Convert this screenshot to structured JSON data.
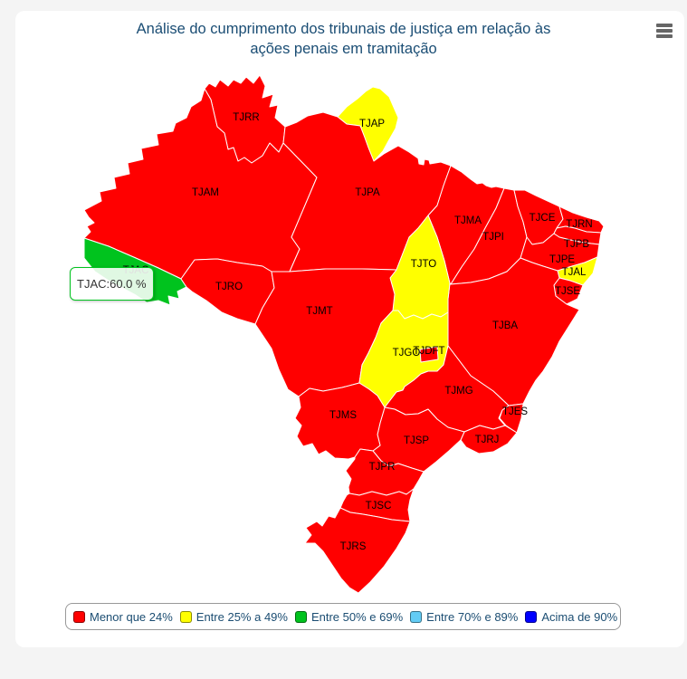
{
  "page": {
    "background": "#f4f4f4",
    "card_background": "#ffffff"
  },
  "chart": {
    "title": "Análise do cumprimento dos tribunais de justiça em relação às ações penais em tramitação",
    "title_color": "#1a4d74",
    "menu_icon": "hamburger-menu",
    "tooltip": {
      "text": "TJAC:60.0 %",
      "border_color": "#00c31e"
    }
  },
  "chart_data": {
    "type": "choropleth_map",
    "title": "Análise do cumprimento dos tribunais de justiça em relação às ações penais em tramitação",
    "unit": "%",
    "legend_position": "bottom",
    "classes": [
      {
        "label": "Menor que 24%",
        "color": "#FF0000"
      },
      {
        "label": "Entre 25% a 49%",
        "color": "#FFFF00"
      },
      {
        "label": "Entre 50% e 69%",
        "color": "#00C31E"
      },
      {
        "label": "Entre 70% e 89%",
        "color": "#63CCF5"
      },
      {
        "label": "Acima de 90%",
        "color": "#0000FF"
      }
    ],
    "regions": [
      {
        "id": "TJRR",
        "class_index": 0
      },
      {
        "id": "TJAP",
        "class_index": 1
      },
      {
        "id": "TJAM",
        "class_index": 0
      },
      {
        "id": "TJPA",
        "class_index": 0
      },
      {
        "id": "TJMA",
        "class_index": 0
      },
      {
        "id": "TJPI",
        "class_index": 0
      },
      {
        "id": "TJCE",
        "class_index": 0
      },
      {
        "id": "TJRN",
        "class_index": 0
      },
      {
        "id": "TJPB",
        "class_index": 0
      },
      {
        "id": "TJPE",
        "class_index": 0
      },
      {
        "id": "TJAL",
        "class_index": 1
      },
      {
        "id": "TJSE",
        "class_index": 0
      },
      {
        "id": "TJBA",
        "class_index": 0
      },
      {
        "id": "TJTO",
        "class_index": 1
      },
      {
        "id": "TJAC",
        "class_index": 2,
        "value": 60.0
      },
      {
        "id": "TJRO",
        "class_index": 0
      },
      {
        "id": "TJMT",
        "class_index": 0
      },
      {
        "id": "TJGO",
        "class_index": 1
      },
      {
        "id": "TJDFT",
        "class_index": 0
      },
      {
        "id": "TJMG",
        "class_index": 0
      },
      {
        "id": "TJES",
        "class_index": 0
      },
      {
        "id": "TJRJ",
        "class_index": 0
      },
      {
        "id": "TJSP",
        "class_index": 0
      },
      {
        "id": "TJMS",
        "class_index": 0
      },
      {
        "id": "TJPR",
        "class_index": 0
      },
      {
        "id": "TJSC",
        "class_index": 0
      },
      {
        "id": "TJRS",
        "class_index": 0
      }
    ]
  }
}
